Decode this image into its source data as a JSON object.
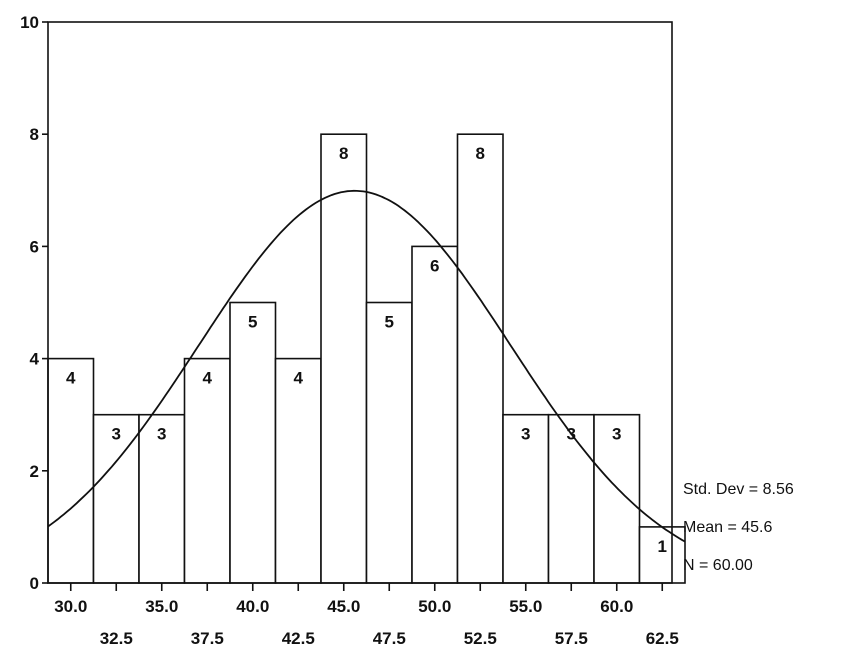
{
  "chart_data": {
    "type": "bar",
    "subtype": "histogram",
    "bin_width": 2.5,
    "bins": [
      {
        "center": 30.0,
        "count": 4
      },
      {
        "center": 32.5,
        "count": 3
      },
      {
        "center": 35.0,
        "count": 3
      },
      {
        "center": 37.5,
        "count": 4
      },
      {
        "center": 40.0,
        "count": 5
      },
      {
        "center": 42.5,
        "count": 4
      },
      {
        "center": 45.0,
        "count": 8
      },
      {
        "center": 47.5,
        "count": 5
      },
      {
        "center": 50.0,
        "count": 6
      },
      {
        "center": 52.5,
        "count": 8
      },
      {
        "center": 55.0,
        "count": 3
      },
      {
        "center": 57.5,
        "count": 3
      },
      {
        "center": 60.0,
        "count": 3
      },
      {
        "center": 62.5,
        "count": 1
      }
    ],
    "bar_labels": [
      "4",
      "3",
      "3",
      "4",
      "5",
      "4",
      "8",
      "5",
      "6",
      "8",
      "3",
      "3",
      "3",
      "1"
    ],
    "xticks_row1": [
      "30.0",
      "35.0",
      "40.0",
      "45.0",
      "50.0",
      "55.0",
      "60.0"
    ],
    "xticks_row2": [
      "32.5",
      "37.5",
      "42.5",
      "47.5",
      "52.5",
      "57.5",
      "62.5"
    ],
    "yticks": [
      "0",
      "2",
      "4",
      "6",
      "8",
      "10"
    ],
    "ylim": [
      0,
      10
    ],
    "normal_curve": {
      "mean": 45.6,
      "std": 8.56,
      "n": 60
    },
    "stats": {
      "std_dev": "Std. Dev = 8.56",
      "mean": "Mean = 45.6",
      "n": "N = 60.00"
    },
    "title": "",
    "xlabel": "",
    "ylabel": "",
    "grid": false
  }
}
